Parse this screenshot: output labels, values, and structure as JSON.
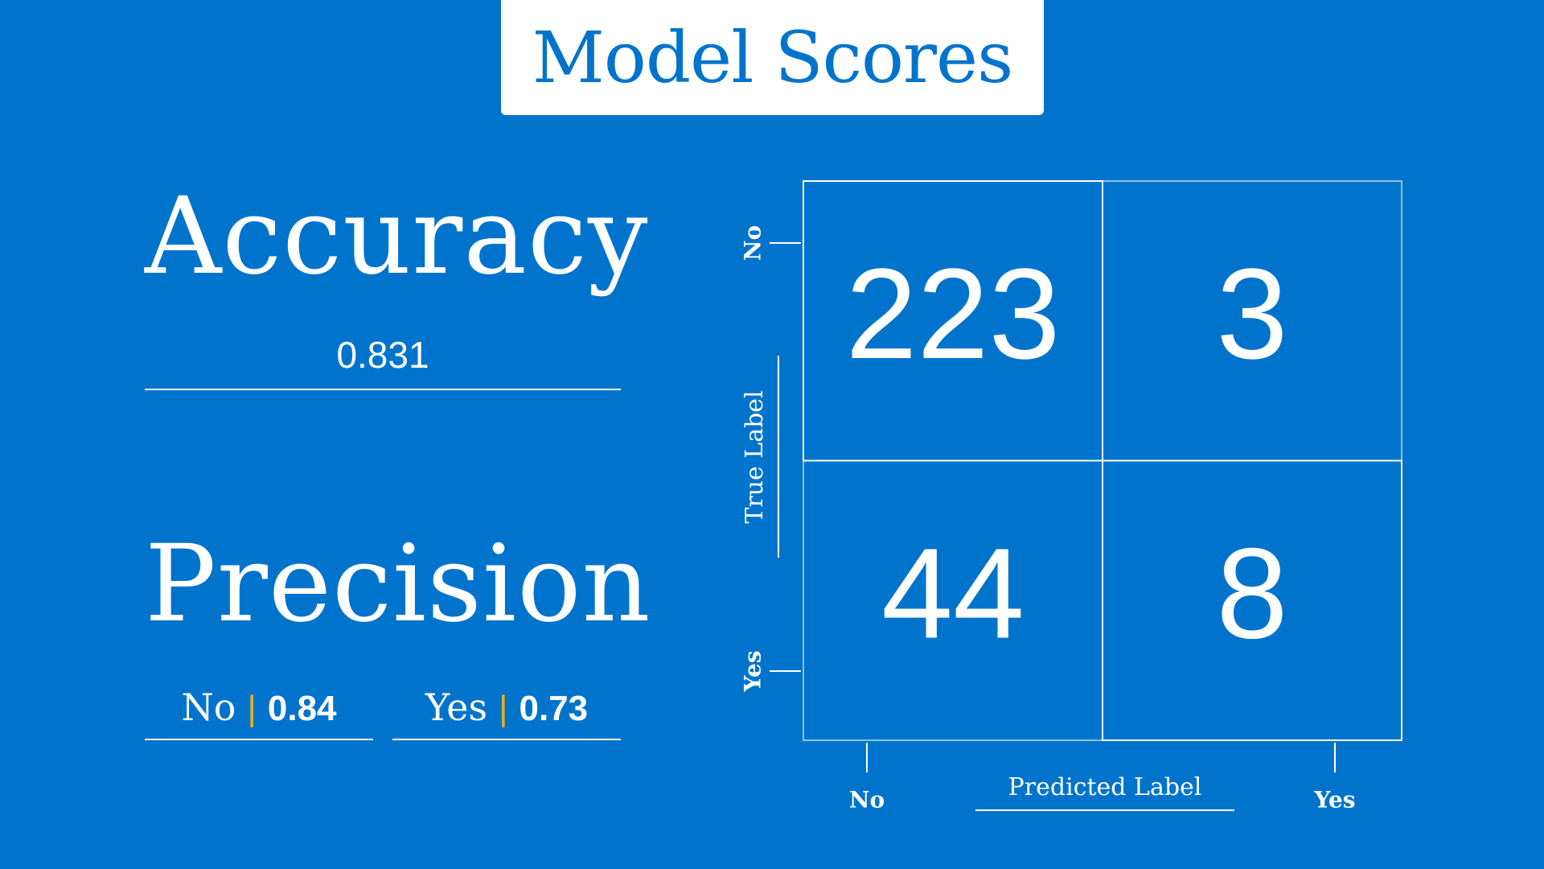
{
  "title": "Model Scores",
  "accuracy": {
    "label": "Accuracy",
    "value": "0.831"
  },
  "precision": {
    "label": "Precision",
    "items": [
      {
        "label": "No",
        "value": "0.84"
      },
      {
        "label": "Yes",
        "value": "0.73"
      }
    ]
  },
  "colors": {
    "background": "#0074CC",
    "title_text": "#0074CC",
    "separator": "#E8B016",
    "foreground": "#FFFFFF"
  },
  "chart_data": {
    "type": "heatmap",
    "title": "",
    "xlabel": "Predicted Label",
    "ylabel": "True Label",
    "x_categories": [
      "No",
      "Yes"
    ],
    "y_categories": [
      "No",
      "Yes"
    ],
    "values": [
      [
        223,
        3
      ],
      [
        44,
        8
      ]
    ],
    "grid": true,
    "legend": "none"
  }
}
